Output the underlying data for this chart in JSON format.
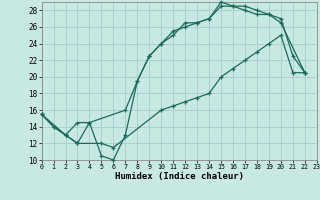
{
  "xlabel": "Humidex (Indice chaleur)",
  "bg_color": "#c8e8e4",
  "grid_color": "#a8ccca",
  "line_color": "#1a6b5a",
  "xlim": [
    0,
    23
  ],
  "ylim": [
    10,
    29
  ],
  "xticks": [
    0,
    1,
    2,
    3,
    4,
    5,
    6,
    7,
    8,
    9,
    10,
    11,
    12,
    13,
    14,
    15,
    16,
    17,
    18,
    19,
    20,
    21,
    22,
    23
  ],
  "yticks": [
    10,
    12,
    14,
    16,
    18,
    20,
    22,
    24,
    26,
    28
  ],
  "line1_x": [
    0,
    1,
    2,
    3,
    4,
    5,
    6,
    7,
    8,
    9,
    10,
    11,
    12,
    13,
    14,
    15,
    16,
    17,
    18,
    19,
    20,
    21,
    22
  ],
  "line1_y": [
    15.5,
    14.0,
    13.0,
    12.0,
    14.5,
    10.5,
    10.0,
    13.0,
    19.5,
    22.5,
    24.0,
    25.0,
    26.5,
    26.5,
    27.0,
    29.0,
    28.5,
    28.5,
    28.0,
    27.5,
    27.0,
    22.5,
    20.5
  ],
  "line2_x": [
    0,
    2,
    3,
    4,
    7,
    8,
    9,
    10,
    11,
    12,
    13,
    14,
    15,
    16,
    17,
    18,
    19,
    20,
    22
  ],
  "line2_y": [
    15.5,
    13.0,
    14.5,
    14.5,
    16.0,
    19.5,
    22.5,
    24.0,
    25.5,
    26.0,
    26.5,
    27.0,
    28.5,
    28.5,
    28.0,
    27.5,
    27.5,
    26.5,
    20.5
  ],
  "line3_x": [
    0,
    1,
    2,
    3,
    5,
    6,
    10,
    11,
    12,
    13,
    14,
    15,
    16,
    17,
    18,
    19,
    20,
    21,
    22
  ],
  "line3_y": [
    15.5,
    14.0,
    13.0,
    12.0,
    12.0,
    11.5,
    16.0,
    16.5,
    17.0,
    17.5,
    18.0,
    20.0,
    21.0,
    22.0,
    23.0,
    24.0,
    25.0,
    20.5,
    20.5
  ]
}
